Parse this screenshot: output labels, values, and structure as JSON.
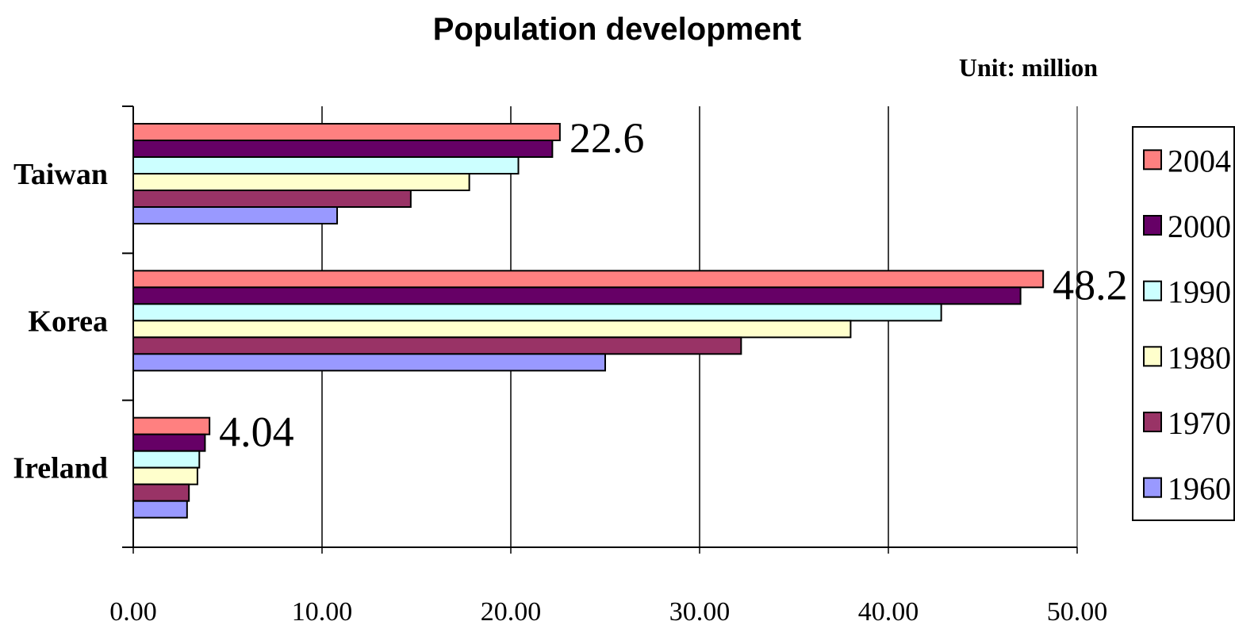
{
  "chart_data": {
    "type": "bar",
    "orientation": "horizontal",
    "title": "Population development",
    "subtitle": "Unit: million",
    "categories": [
      "Taiwan",
      "Korea",
      "Ireland"
    ],
    "series": [
      {
        "name": "2004",
        "color": "#FF8080",
        "values": [
          22.6,
          48.2,
          4.04
        ]
      },
      {
        "name": "2000",
        "color": "#660066",
        "values": [
          22.2,
          47.0,
          3.8
        ]
      },
      {
        "name": "1990",
        "color": "#CCFFFF",
        "values": [
          20.4,
          42.8,
          3.5
        ]
      },
      {
        "name": "1980",
        "color": "#FFFFCC",
        "values": [
          17.8,
          38.0,
          3.4
        ]
      },
      {
        "name": "1970",
        "color": "#993366",
        "values": [
          14.7,
          32.2,
          2.95
        ]
      },
      {
        "name": "1960",
        "color": "#9999FF",
        "values": [
          10.8,
          25.0,
          2.85
        ]
      }
    ],
    "data_labels": [
      {
        "category": "Taiwan",
        "series": "2004",
        "text": "22.6"
      },
      {
        "category": "Korea",
        "series": "2004",
        "text": "48.2"
      },
      {
        "category": "Ireland",
        "series": "2004",
        "text": "4.04"
      }
    ],
    "x_ticks": [
      "0.00",
      "10.00",
      "20.00",
      "30.00",
      "40.00",
      "50.00"
    ],
    "xlim": [
      0,
      50
    ],
    "grid": true,
    "legend_position": "right"
  }
}
